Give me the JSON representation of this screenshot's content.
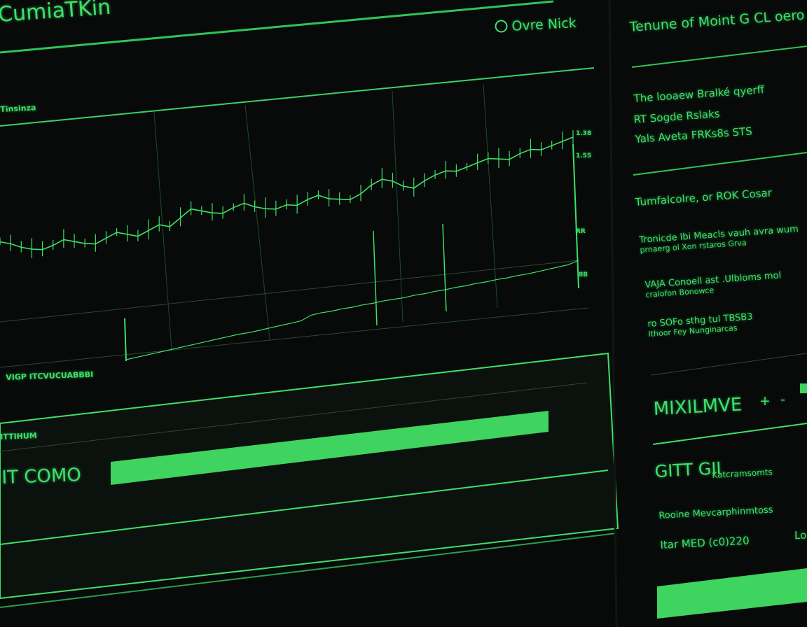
{
  "header": {
    "app_title": "CumiaTKin",
    "status_label": "Ovre Nick",
    "status_icon": "circle-badge-icon"
  },
  "chart_panel": {
    "label": "Tinsinza",
    "axis_label_bottom": "VIGP ITCVUCUABBBI",
    "y_tick_labels": [
      "1.38",
      "1.55",
      "RR",
      "8B"
    ]
  },
  "progress_panel": {
    "label": "ITTIHUM",
    "name": "IT COMO",
    "progress_percent": 100
  },
  "sidebar": {
    "title": "Tenune of Moint G CL oero",
    "block1": [
      "The looaew Bralké qyerff",
      "RT Sogde Rslaks",
      "Yals Aveta FRKs8s STS"
    ],
    "block2_title": "Tumfalcolre, or ROK Cosar",
    "items": [
      {
        "line1": "Tronicde lbi Meacls vauh avra wum",
        "line2": "prnaerg ol Xon rstaros Grva"
      },
      {
        "line1": "VAJA Conoell ast .Ulbloms mol",
        "line2": "cralofon Bonowce"
      },
      {
        "line1": "ro SOFo sthg tul TBSB3",
        "line2": "Ithoor Fey Nunginarcas"
      }
    ],
    "metric_label": "MIXILMVE",
    "plus_label": "+",
    "minus_label": "-",
    "git_label": "GITT GII",
    "git_sub": "Katcramsomts",
    "row1": "Rooine Mevcarphinmtoss",
    "row2": "Itar MED (c0)220",
    "row2_right": "Lo",
    "progress_percent": 100
  },
  "chart_data": {
    "type": "line",
    "title": "",
    "y_tick_labels": [
      "1.38",
      "1.55",
      "RR",
      "8B"
    ],
    "grid": true,
    "series": [
      {
        "values": [
          52,
          50,
          47,
          45,
          44,
          46,
          49,
          47,
          45,
          44,
          47,
          50,
          48,
          46,
          49,
          52,
          50,
          55,
          60,
          58,
          56,
          55,
          58,
          60,
          57,
          55,
          54,
          56,
          55,
          58,
          60,
          57,
          56,
          55,
          58,
          63,
          66,
          64,
          60,
          58,
          62,
          65,
          67,
          66,
          68,
          70,
          72,
          71,
          70,
          73,
          75,
          74,
          76,
          78,
          80
        ]
      },
      {
        "values": [
          2,
          3,
          4,
          5,
          6,
          7,
          8,
          9,
          10,
          11,
          12,
          13,
          13,
          14,
          15,
          16,
          17,
          18,
          24,
          25,
          25,
          26,
          26,
          27,
          27,
          28,
          28,
          28,
          29,
          29,
          30,
          30,
          31,
          31,
          32,
          32,
          33,
          33,
          34,
          34,
          35,
          36,
          37,
          38,
          42
        ]
      }
    ],
    "colors": {
      "line": "#3ee06a",
      "bar": "#3fd35f",
      "background": "#070a08"
    }
  }
}
